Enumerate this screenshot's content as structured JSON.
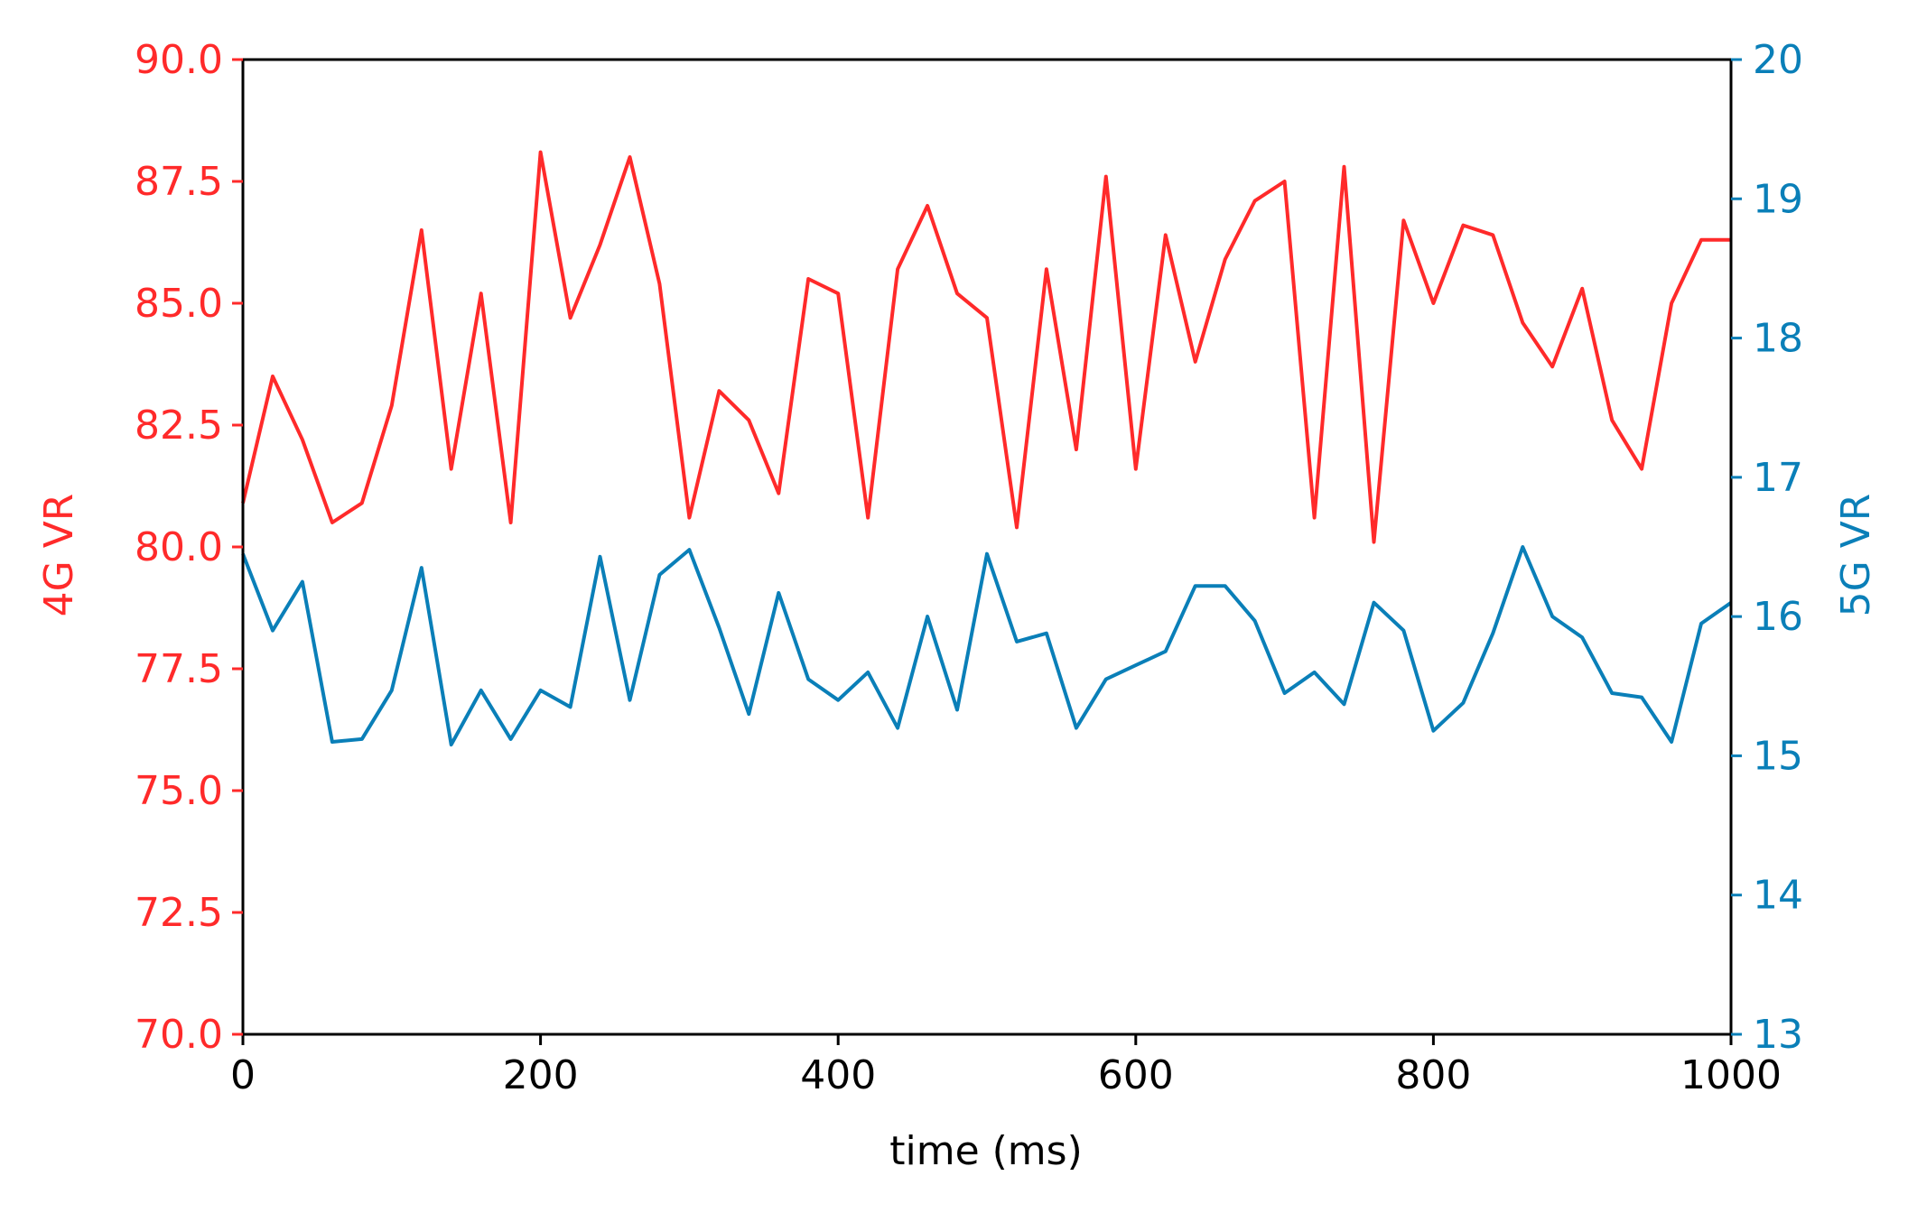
{
  "chart_data": {
    "type": "line",
    "xlabel": "time (ms)",
    "x_ticks": [
      "0",
      "200",
      "400",
      "600",
      "800",
      "1000"
    ],
    "x_tick_values": [
      0,
      200,
      400,
      600,
      800,
      1000
    ],
    "xlim": [
      0,
      1000
    ],
    "left_axis": {
      "label": "4G VR",
      "color": "#ff2a2a",
      "ylim": [
        70,
        90
      ],
      "ticks": [
        "70.0",
        "72.5",
        "75.0",
        "77.5",
        "80.0",
        "82.5",
        "85.0",
        "87.5",
        "90.0"
      ],
      "tick_values": [
        70,
        72.5,
        75,
        77.5,
        80,
        82.5,
        85,
        87.5,
        90
      ]
    },
    "right_axis": {
      "label": "5G VR",
      "color": "#0a7fb8",
      "ylim": [
        13,
        20
      ],
      "ticks": [
        "13",
        "14",
        "15",
        "16",
        "17",
        "18",
        "19",
        "20"
      ],
      "tick_values": [
        13,
        14,
        15,
        16,
        17,
        18,
        19,
        20
      ]
    },
    "grid": false,
    "series": [
      {
        "axis": "left",
        "color": "#ff2a2a",
        "x": [
          0,
          20,
          40,
          60,
          80,
          100,
          120,
          140,
          160,
          180,
          200,
          220,
          240,
          260,
          280,
          300,
          320,
          340,
          360,
          380,
          400,
          420,
          440,
          460,
          480,
          500,
          520,
          540,
          560,
          580,
          600,
          620,
          640,
          660,
          680,
          700,
          720,
          740,
          760,
          780,
          800,
          820,
          840,
          860,
          880,
          900,
          920,
          940,
          960,
          980,
          1000
        ],
        "y": [
          80.9,
          83.5,
          82.2,
          80.5,
          80.9,
          82.9,
          86.5,
          81.6,
          85.2,
          80.5,
          88.1,
          84.7,
          86.2,
          88.0,
          85.4,
          80.6,
          83.2,
          82.6,
          81.1,
          85.5,
          85.2,
          80.6,
          85.7,
          87.0,
          85.2,
          84.7,
          80.4,
          85.7,
          82.0,
          87.6,
          81.6,
          86.4,
          83.8,
          85.9,
          87.1,
          87.5,
          80.6,
          87.8,
          80.1,
          86.7,
          85.0,
          86.6,
          86.4,
          84.6,
          83.7,
          85.3,
          82.6,
          81.6,
          85.0,
          86.3,
          86.3
        ]
      },
      {
        "axis": "right",
        "color": "#0a7fb8",
        "x": [
          0,
          20,
          40,
          60,
          80,
          100,
          120,
          140,
          160,
          180,
          200,
          220,
          240,
          260,
          280,
          300,
          320,
          340,
          360,
          380,
          400,
          420,
          440,
          460,
          480,
          500,
          520,
          540,
          560,
          580,
          600,
          620,
          640,
          660,
          680,
          700,
          720,
          740,
          760,
          780,
          800,
          820,
          840,
          860,
          880,
          900,
          920,
          940,
          960,
          980,
          1000
        ],
        "y": [
          16.45,
          15.9,
          16.25,
          15.1,
          15.12,
          15.47,
          16.35,
          15.08,
          15.47,
          15.12,
          15.47,
          15.35,
          16.43,
          15.4,
          16.3,
          16.48,
          15.92,
          15.3,
          16.17,
          15.55,
          15.4,
          15.6,
          15.2,
          16.0,
          15.33,
          16.45,
          15.82,
          15.88,
          15.2,
          15.55,
          15.65,
          15.75,
          16.22,
          16.22,
          15.97,
          15.45,
          15.6,
          15.37,
          16.1,
          15.9,
          15.18,
          15.38,
          15.88,
          16.5,
          16.0,
          15.85,
          15.45,
          15.42,
          15.1,
          15.95,
          16.1
        ]
      }
    ]
  }
}
